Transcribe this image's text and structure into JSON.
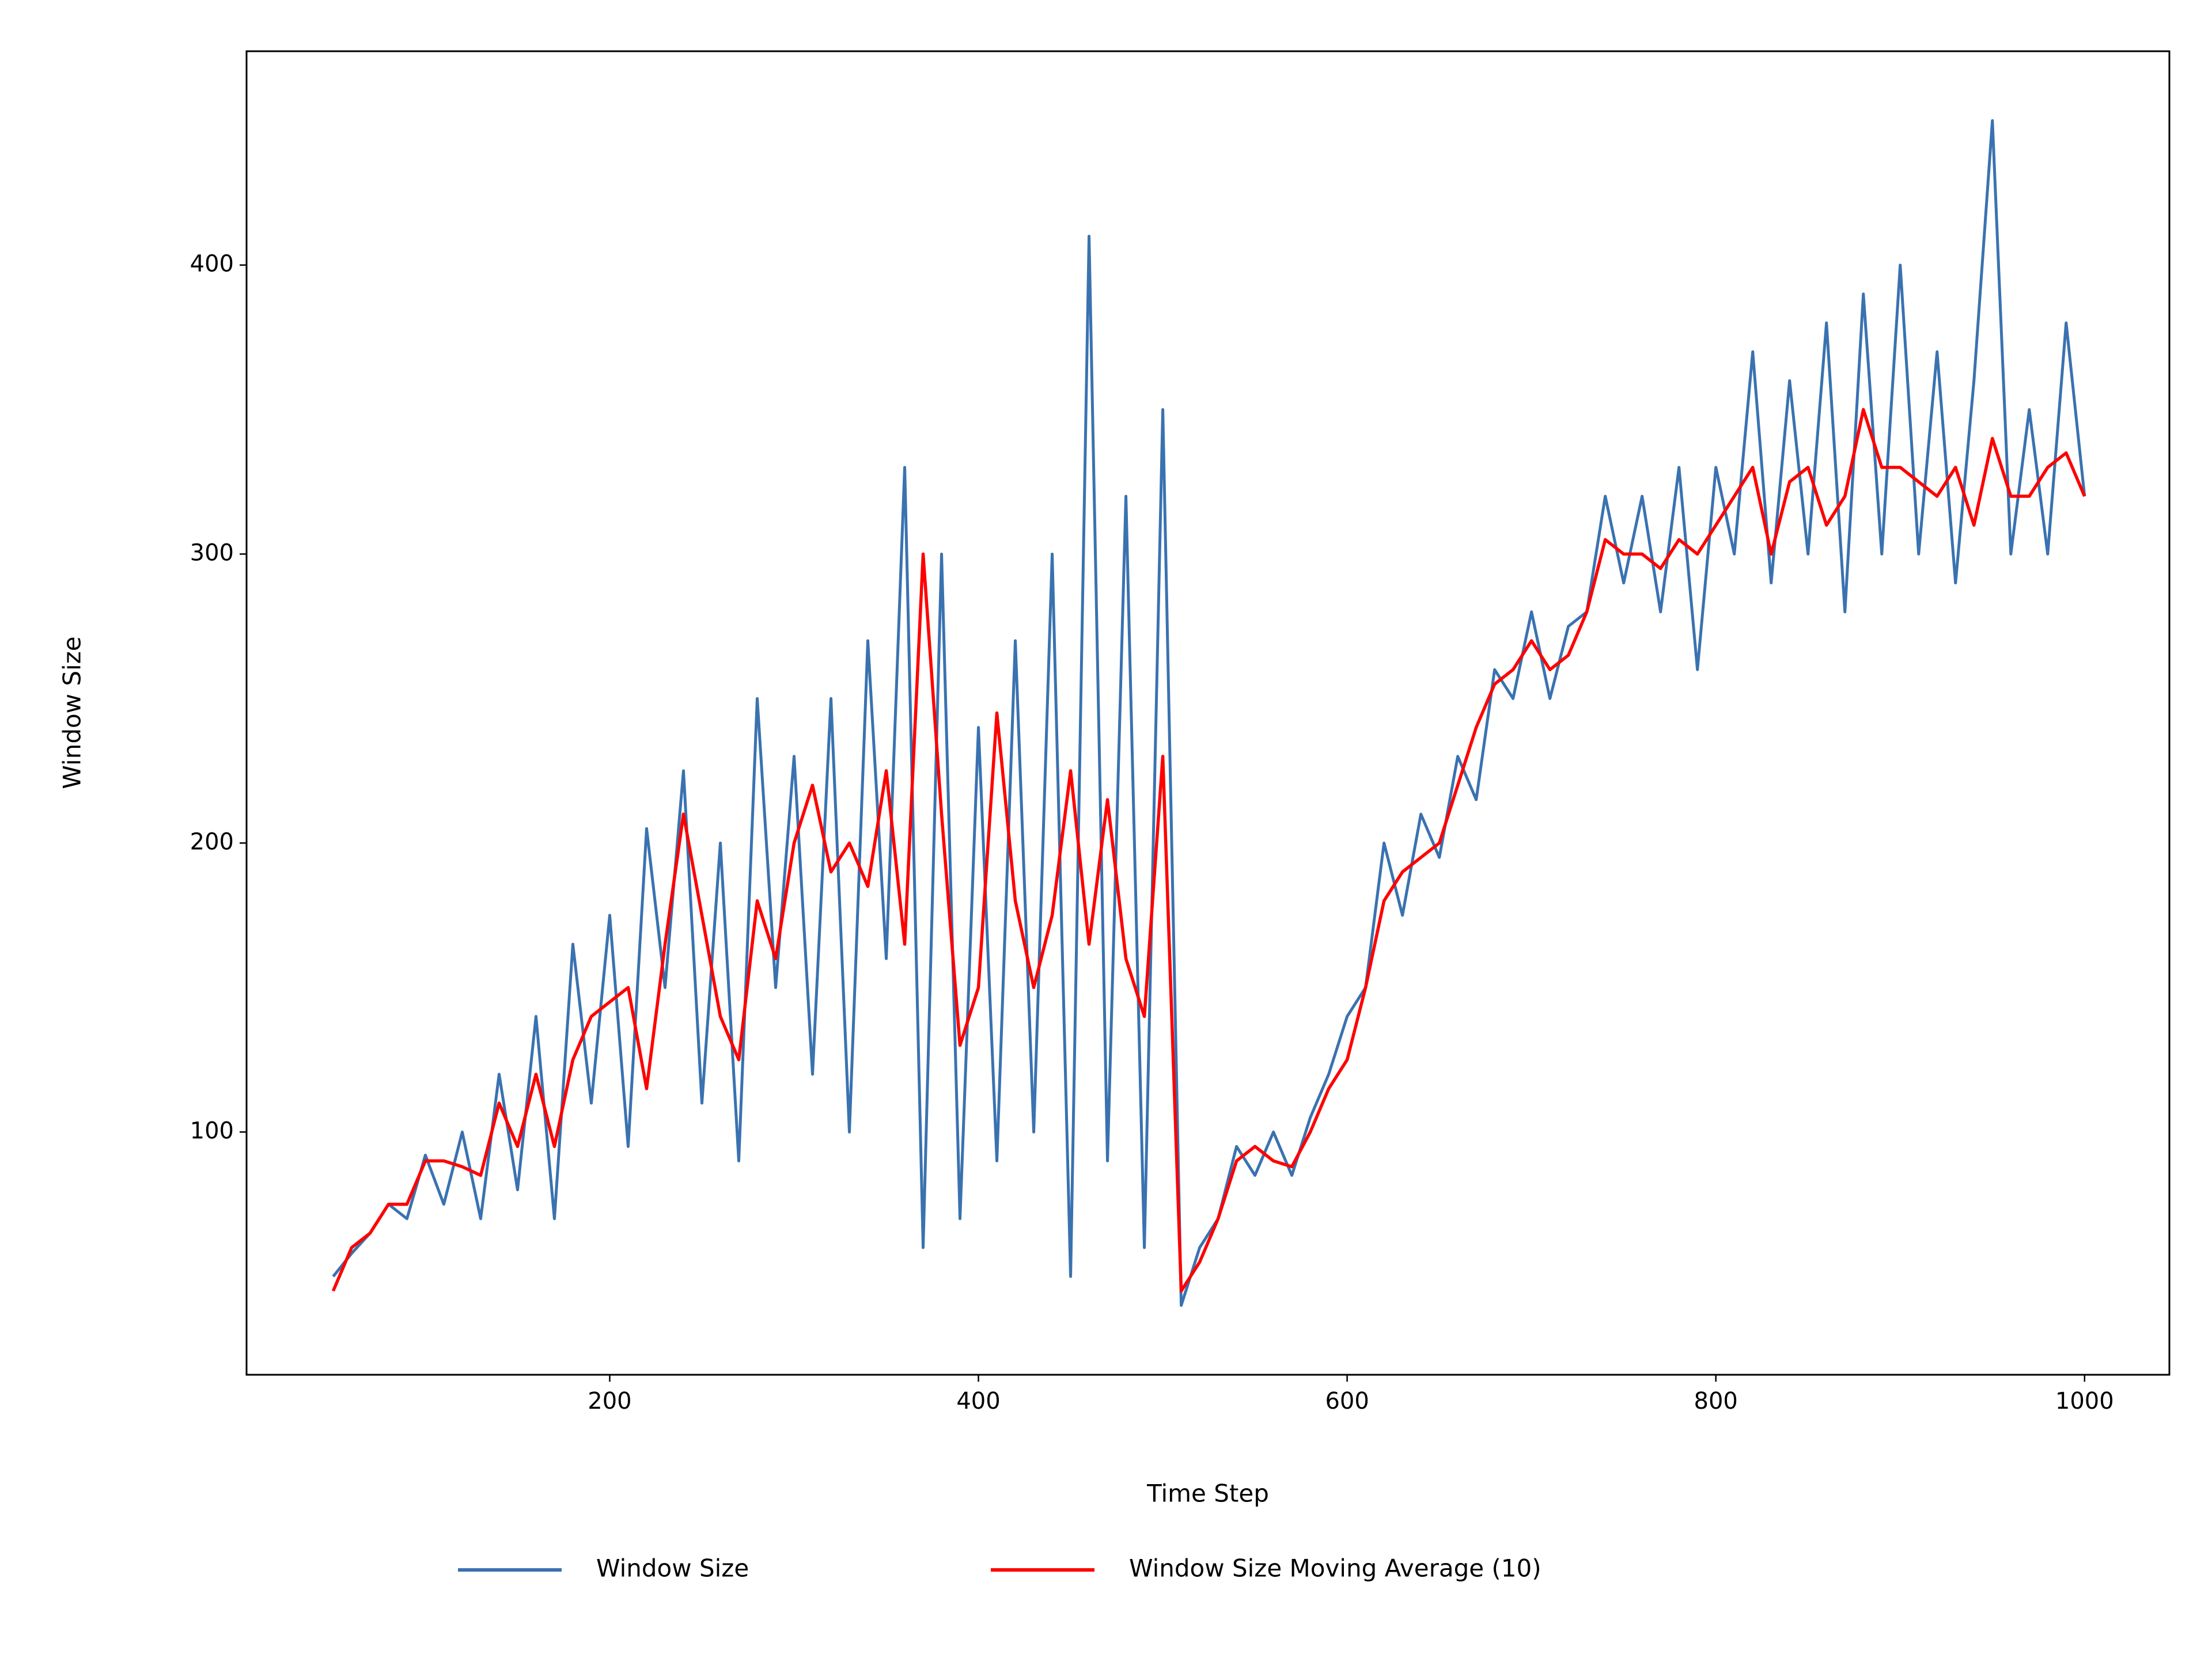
{
  "chart_data": {
    "type": "line",
    "x_label": "Time Step",
    "y_label": "Window Size",
    "x": [
      50,
      60,
      70,
      80,
      90,
      100,
      110,
      120,
      130,
      140,
      150,
      160,
      170,
      180,
      190,
      200,
      210,
      220,
      230,
      240,
      250,
      260,
      270,
      280,
      290,
      300,
      310,
      320,
      330,
      340,
      350,
      360,
      370,
      380,
      390,
      400,
      410,
      420,
      430,
      440,
      450,
      460,
      470,
      480,
      490,
      500,
      510,
      520,
      530,
      540,
      550,
      560,
      570,
      580,
      590,
      600,
      610,
      620,
      630,
      640,
      650,
      660,
      670,
      680,
      690,
      700,
      710,
      720,
      730,
      740,
      750,
      760,
      770,
      780,
      790,
      800,
      810,
      820,
      830,
      840,
      850,
      860,
      870,
      880,
      890,
      900,
      910,
      920,
      930,
      940,
      950,
      960,
      970,
      980,
      990,
      1000
    ],
    "series": [
      {
        "name": "Window Size",
        "color": "#3a72b0",
        "values": [
          50,
          58,
          65,
          75,
          70,
          92,
          75,
          100,
          70,
          120,
          80,
          140,
          70,
          165,
          110,
          175,
          95,
          205,
          150,
          225,
          110,
          200,
          90,
          250,
          150,
          230,
          120,
          250,
          100,
          270,
          160,
          330,
          60,
          300,
          70,
          240,
          90,
          270,
          100,
          300,
          50,
          410,
          90,
          320,
          60,
          350,
          40,
          60,
          70,
          95,
          85,
          100,
          85,
          105,
          120,
          140,
          150,
          200,
          175,
          210,
          195,
          230,
          215,
          260,
          250,
          280,
          250,
          275,
          280,
          320,
          290,
          320,
          280,
          330,
          260,
          330,
          300,
          370,
          290,
          360,
          300,
          380,
          280,
          390,
          300,
          400,
          300,
          370,
          290,
          360,
          450,
          300,
          350,
          300,
          380,
          320
        ]
      },
      {
        "name": "Window Size Moving Average (10)",
        "color": "#ff0000",
        "values": [
          45,
          60,
          65,
          75,
          75,
          90,
          90,
          88,
          85,
          110,
          95,
          120,
          95,
          125,
          140,
          145,
          150,
          115,
          165,
          210,
          175,
          140,
          125,
          180,
          160,
          200,
          220,
          190,
          200,
          185,
          225,
          165,
          300,
          210,
          130,
          150,
          245,
          180,
          150,
          175,
          225,
          165,
          215,
          160,
          140,
          230,
          45,
          55,
          70,
          90,
          95,
          90,
          88,
          100,
          115,
          125,
          150,
          180,
          190,
          195,
          200,
          220,
          240,
          255,
          260,
          270,
          260,
          265,
          280,
          305,
          300,
          300,
          295,
          305,
          300,
          310,
          320,
          330,
          300,
          325,
          330,
          310,
          320,
          350,
          330,
          330,
          325,
          320,
          330,
          310,
          340,
          320,
          320,
          330,
          335,
          320
        ]
      }
    ],
    "xlim": [
      3,
      1046
    ],
    "ylim": [
      16,
      474
    ],
    "xticks": [
      200,
      400,
      600,
      800,
      1000
    ],
    "yticks": [
      100,
      200,
      300,
      400
    ],
    "grid": false,
    "legend": "bottom"
  }
}
